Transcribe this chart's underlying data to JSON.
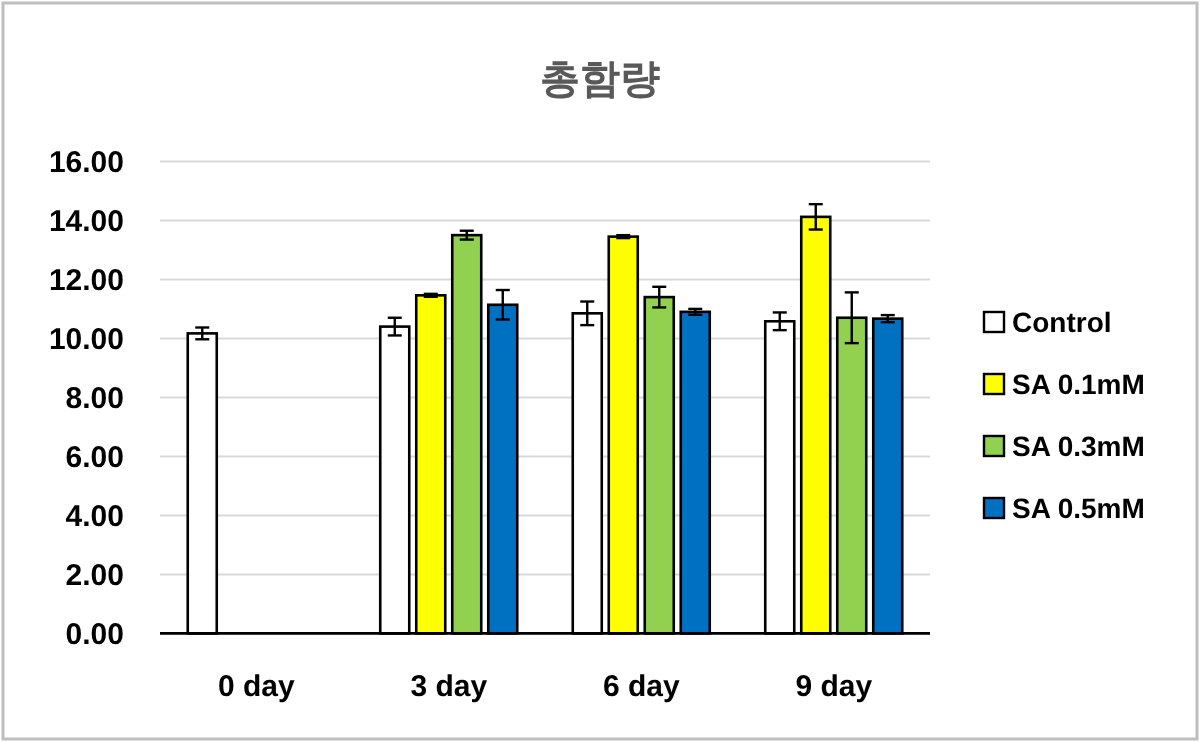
{
  "chart_data": {
    "type": "bar",
    "title": "총함량",
    "categories": [
      "0 day",
      "3 day",
      "6 day",
      "9 day"
    ],
    "series": [
      {
        "name": "Control",
        "color": "#ffffff",
        "values": [
          10.17,
          10.4,
          10.85,
          10.58
        ],
        "errors": [
          0.2,
          0.3,
          0.4,
          0.3
        ]
      },
      {
        "name": "SA 0.1mM",
        "color": "#ffff00",
        "values": [
          null,
          11.46,
          13.45,
          14.12
        ],
        "errors": [
          null,
          0.05,
          0.05,
          0.43
        ]
      },
      {
        "name": "SA 0.3mM",
        "color": "#92d050",
        "values": [
          null,
          13.5,
          11.4,
          10.7
        ],
        "errors": [
          null,
          0.15,
          0.35,
          0.86
        ]
      },
      {
        "name": "SA 0.5mM",
        "color": "#0070c0",
        "values": [
          null,
          11.14,
          10.9,
          10.67
        ],
        "errors": [
          null,
          0.5,
          0.1,
          0.12
        ]
      }
    ],
    "ylim": [
      0,
      16
    ],
    "yticks": [
      {
        "value": 0,
        "label": "0.00"
      },
      {
        "value": 2,
        "label": "2.00"
      },
      {
        "value": 4,
        "label": "4.00"
      },
      {
        "value": 6,
        "label": "6.00"
      },
      {
        "value": 8,
        "label": "8.00"
      },
      {
        "value": 10,
        "label": "10.00"
      },
      {
        "value": 12,
        "label": "12.00"
      },
      {
        "value": 14,
        "label": "14.00"
      },
      {
        "value": 16,
        "label": "16.00"
      }
    ],
    "grid": "y",
    "legend": "right"
  }
}
